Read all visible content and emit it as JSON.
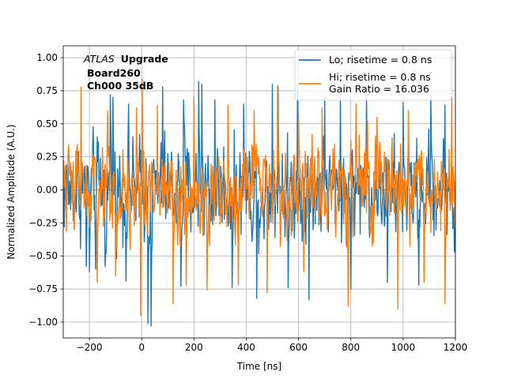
{
  "chart_data": {
    "type": "line",
    "title": "",
    "xlabel": "Time [ns]",
    "ylabel": "Normalized Amplitude (A.U.)",
    "xlim": [
      -300,
      1200
    ],
    "ylim": [
      -1.12,
      1.09
    ],
    "xticks": [
      -200,
      0,
      200,
      400,
      600,
      800,
      1000,
      1200
    ],
    "xtick_labels": [
      "−200",
      "0",
      "200",
      "400",
      "600",
      "800",
      "1000",
      "1200"
    ],
    "yticks": [
      -1.0,
      -0.75,
      -0.5,
      -0.25,
      0.0,
      0.25,
      0.5,
      0.75,
      1.0
    ],
    "ytick_labels": [
      "−1.00",
      "−0.75",
      "−0.50",
      "−0.25",
      "0.00",
      "0.25",
      "0.50",
      "0.75",
      "1.00"
    ],
    "grid": true,
    "legend_position": "top-right",
    "annotation": {
      "atlas": "ATLAS",
      "upgrade": "Upgrade",
      "board": "Board260",
      "channel": "Ch000 35dB"
    },
    "series": [
      {
        "name": "Lo; risetime = 0.8 ns",
        "color": "#1f77b4",
        "sample_step_ns": 2,
        "noise_amplitude": 0.55,
        "spikes": [
          {
            "x": -212,
            "y": -0.58
          },
          {
            "x": -200,
            "y": -0.62
          },
          {
            "x": -176,
            "y": -0.6
          },
          {
            "x": -140,
            "y": -0.58
          },
          {
            "x": -120,
            "y": 0.72
          },
          {
            "x": -110,
            "y": 0.7
          },
          {
            "x": -60,
            "y": -0.69
          },
          {
            "x": -50,
            "y": 0.65
          },
          {
            "x": 24,
            "y": -1.01
          },
          {
            "x": 36,
            "y": -1.03
          },
          {
            "x": 80,
            "y": 0.78
          },
          {
            "x": 150,
            "y": -0.73
          },
          {
            "x": 160,
            "y": 0.68
          },
          {
            "x": 218,
            "y": 0.82
          },
          {
            "x": 230,
            "y": 0.8
          },
          {
            "x": 280,
            "y": 0.68
          },
          {
            "x": 346,
            "y": -0.74
          },
          {
            "x": 390,
            "y": 0.65
          },
          {
            "x": 440,
            "y": -0.82
          },
          {
            "x": 500,
            "y": 0.8
          },
          {
            "x": 522,
            "y": 0.78
          },
          {
            "x": 560,
            "y": -0.74
          },
          {
            "x": 595,
            "y": 0.76
          },
          {
            "x": 640,
            "y": -0.83
          },
          {
            "x": 700,
            "y": 0.7
          },
          {
            "x": 760,
            "y": 0.7
          },
          {
            "x": 800,
            "y": -0.75
          },
          {
            "x": 860,
            "y": 0.72
          },
          {
            "x": 940,
            "y": -0.7
          },
          {
            "x": 1000,
            "y": 0.66
          },
          {
            "x": 1060,
            "y": -0.72
          },
          {
            "x": 1105,
            "y": 0.72
          },
          {
            "x": 1160,
            "y": 0.64
          },
          {
            "x": 1195,
            "y": -0.47
          }
        ]
      },
      {
        "name": "Hi; risetime = 0.8 ns\n Gain Ratio = 16.036",
        "color": "#ff7f0e",
        "sample_step_ns": 2,
        "noise_amplitude": 0.5,
        "spikes": [
          {
            "x": -232,
            "y": 0.78
          },
          {
            "x": -170,
            "y": -0.7
          },
          {
            "x": -130,
            "y": 0.6
          },
          {
            "x": -100,
            "y": -0.65
          },
          {
            "x": -20,
            "y": 0.62
          },
          {
            "x": -4,
            "y": -0.95
          },
          {
            "x": 2,
            "y": 0.84
          },
          {
            "x": 60,
            "y": 0.64
          },
          {
            "x": 120,
            "y": -0.86
          },
          {
            "x": 170,
            "y": -0.72
          },
          {
            "x": 200,
            "y": 0.7
          },
          {
            "x": 250,
            "y": -0.76
          },
          {
            "x": 330,
            "y": 0.64
          },
          {
            "x": 370,
            "y": -0.72
          },
          {
            "x": 430,
            "y": 0.6
          },
          {
            "x": 480,
            "y": -0.78
          },
          {
            "x": 520,
            "y": 0.79
          },
          {
            "x": 600,
            "y": 0.58
          },
          {
            "x": 620,
            "y": -0.62
          },
          {
            "x": 690,
            "y": 0.62
          },
          {
            "x": 790,
            "y": -0.88
          },
          {
            "x": 820,
            "y": 0.65
          },
          {
            "x": 900,
            "y": 0.55
          },
          {
            "x": 980,
            "y": -0.9
          },
          {
            "x": 1020,
            "y": 0.6
          },
          {
            "x": 1080,
            "y": -0.7
          },
          {
            "x": 1160,
            "y": -0.86
          },
          {
            "x": 1186,
            "y": 0.7
          }
        ]
      }
    ]
  }
}
